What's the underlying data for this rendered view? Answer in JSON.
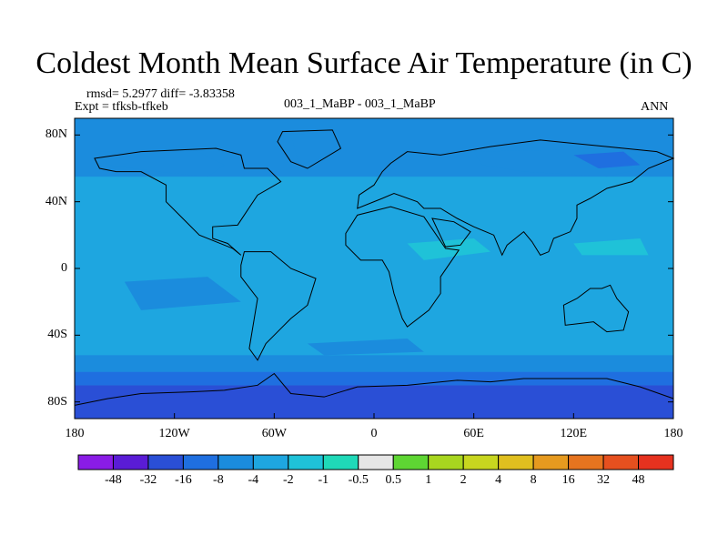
{
  "chart_data": {
    "type": "heatmap",
    "title": "Coldest Month Mean Surface Air Temperature (in C)",
    "stats": "rmsd= 5.2977  diff= -3.83358",
    "experiment": "Expt = tfksb-tfkeb",
    "case": "003_1_MaBP - 003_1_MaBP",
    "season": "ANN",
    "x_ticks": [
      "180",
      "120W",
      "60W",
      "0",
      "60E",
      "120E",
      "180"
    ],
    "y_ticks": [
      "80N",
      "40N",
      "0",
      "40S",
      "80S"
    ],
    "xlim": [
      -180,
      180
    ],
    "ylim": [
      -90,
      90
    ],
    "colorbar": {
      "labels": [
        "-48",
        "-32",
        "-16",
        "-8",
        "-4",
        "-2",
        "-1",
        "-0.5",
        "0.5",
        "1",
        "2",
        "4",
        "8",
        "16",
        "32",
        "48"
      ],
      "colors": [
        "#8a1ce6",
        "#5a1cd6",
        "#2a4fd6",
        "#1f6fe0",
        "#1b8cdd",
        "#1ea6e0",
        "#1fc2d8",
        "#1fd9b8",
        "#e6e6e6",
        "#5ed633",
        "#a8d61f",
        "#c8d61f",
        "#e0bf1f",
        "#e69a1f",
        "#e6741f",
        "#e6501f",
        "#e6321f"
      ]
    },
    "field_description_levels": {
      "background": "-4",
      "high_latitude_north": "-8",
      "antarctic_band": "-16",
      "tropical_patches": "-2"
    }
  }
}
